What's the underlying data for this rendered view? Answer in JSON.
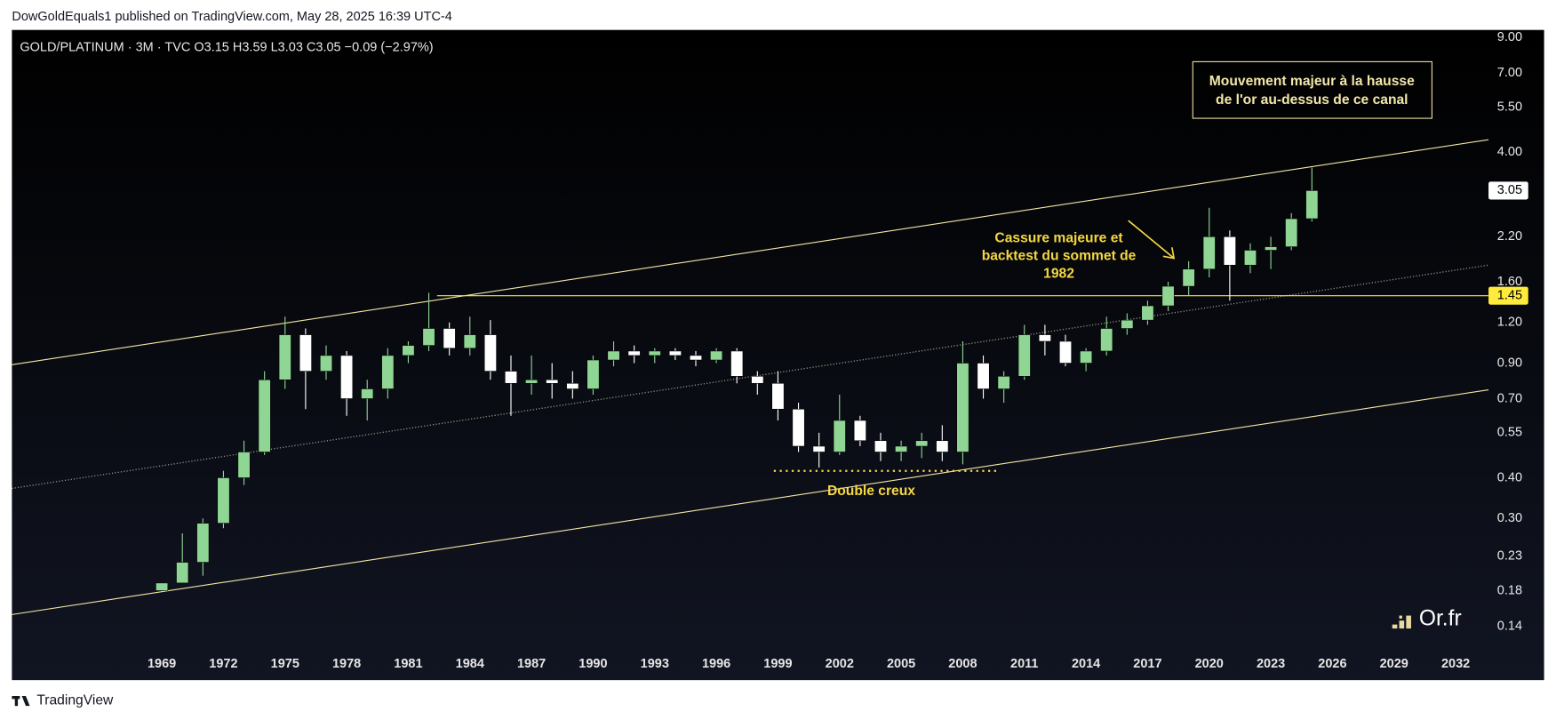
{
  "header": "DowGoldEquals1 published on TradingView.com, May 28, 2025 16:39 UTC-4",
  "footer": "TradingView",
  "logo": "Or.fr",
  "chart_data": {
    "type": "candlestick",
    "legend": "GOLD/PLATINUM · 3M · TVC  O3.15  H3.59  L3.03  C3.05  −0.09 (−2.97%)",
    "log_scale": true,
    "up_color": "#8fd694",
    "down_color": "#ffffff",
    "x": [
      1969,
      1970,
      1971,
      1972,
      1973,
      1974,
      1975,
      1976,
      1977,
      1978,
      1979,
      1980,
      1981,
      1982,
      1983,
      1984,
      1985,
      1986,
      1987,
      1988,
      1989,
      1990,
      1991,
      1992,
      1993,
      1994,
      1995,
      1996,
      1997,
      1998,
      1999,
      2000,
      2001,
      2002,
      2003,
      2004,
      2005,
      2006,
      2007,
      2008,
      2009,
      2010,
      2011,
      2012,
      2013,
      2014,
      2015,
      2016,
      2017,
      2018,
      2019,
      2020,
      2021,
      2022,
      2023,
      2024,
      2025
    ],
    "open": [
      0.18,
      0.19,
      0.22,
      0.29,
      0.4,
      0.48,
      0.8,
      1.1,
      0.85,
      0.95,
      0.7,
      0.75,
      0.95,
      1.02,
      1.15,
      1.0,
      1.1,
      0.85,
      0.78,
      0.8,
      0.78,
      0.75,
      0.92,
      0.98,
      0.95,
      0.98,
      0.95,
      0.92,
      0.98,
      0.82,
      0.78,
      0.65,
      0.5,
      0.48,
      0.6,
      0.52,
      0.48,
      0.5,
      0.52,
      0.48,
      0.9,
      0.75,
      0.82,
      1.1,
      1.05,
      0.9,
      0.98,
      1.15,
      1.22,
      1.35,
      1.55,
      1.75,
      2.2,
      1.8,
      2.0,
      2.05,
      2.5
    ],
    "high": [
      0.19,
      0.27,
      0.3,
      0.42,
      0.52,
      0.85,
      1.25,
      1.15,
      1.02,
      0.98,
      0.8,
      1.0,
      1.05,
      1.48,
      1.2,
      1.25,
      1.22,
      0.95,
      0.95,
      0.9,
      0.85,
      0.95,
      1.05,
      1.02,
      1.0,
      1.0,
      0.98,
      1.0,
      1.0,
      0.85,
      0.85,
      0.68,
      0.55,
      0.72,
      0.62,
      0.55,
      0.52,
      0.55,
      0.58,
      1.05,
      0.95,
      0.85,
      1.18,
      1.18,
      1.1,
      1.0,
      1.25,
      1.28,
      1.4,
      1.6,
      1.85,
      2.7,
      2.3,
      2.1,
      2.2,
      2.6,
      3.59
    ],
    "low": [
      0.18,
      0.2,
      0.2,
      0.28,
      0.38,
      0.47,
      0.75,
      0.65,
      0.8,
      0.62,
      0.6,
      0.7,
      0.9,
      0.98,
      0.95,
      0.95,
      0.8,
      0.62,
      0.72,
      0.7,
      0.7,
      0.72,
      0.88,
      0.9,
      0.9,
      0.92,
      0.88,
      0.9,
      0.78,
      0.72,
      0.6,
      0.48,
      0.43,
      0.47,
      0.5,
      0.45,
      0.45,
      0.46,
      0.45,
      0.44,
      0.7,
      0.68,
      0.8,
      0.95,
      0.88,
      0.85,
      0.95,
      1.1,
      1.18,
      1.3,
      1.45,
      1.65,
      1.4,
      1.7,
      1.75,
      2.0,
      2.45
    ],
    "close": [
      0.19,
      0.22,
      0.29,
      0.4,
      0.48,
      0.8,
      1.1,
      0.85,
      0.95,
      0.7,
      0.75,
      0.95,
      1.02,
      1.15,
      1.0,
      1.1,
      0.85,
      0.78,
      0.8,
      0.78,
      0.75,
      0.92,
      0.98,
      0.95,
      0.98,
      0.95,
      0.92,
      0.98,
      0.82,
      0.78,
      0.65,
      0.5,
      0.48,
      0.6,
      0.52,
      0.48,
      0.5,
      0.52,
      0.48,
      0.9,
      0.75,
      0.82,
      1.1,
      1.05,
      0.9,
      0.98,
      1.15,
      1.22,
      1.35,
      1.55,
      1.75,
      2.2,
      1.8,
      2.0,
      2.05,
      2.5,
      3.05
    ],
    "xlim": [
      1961.7,
      2033.6
    ],
    "xticks": [
      1969,
      1972,
      1975,
      1978,
      1981,
      1984,
      1987,
      1990,
      1993,
      1996,
      1999,
      2002,
      2005,
      2008,
      2011,
      2014,
      2017,
      2020,
      2023,
      2026,
      2029,
      2032
    ],
    "ylim": [
      0.118,
      9.5
    ],
    "yticks": [
      {
        "value": 9,
        "label": "9.00"
      },
      {
        "value": 7,
        "label": "7.00"
      },
      {
        "value": 5.5,
        "label": "5.50"
      },
      {
        "value": 4,
        "label": "4.00"
      },
      {
        "value": 2.2,
        "label": "2.20"
      },
      {
        "value": 1.6,
        "label": "1.60"
      },
      {
        "value": 1.2,
        "label": "1.20"
      },
      {
        "value": 0.9,
        "label": "0.90"
      },
      {
        "value": 0.7,
        "label": "0.70"
      },
      {
        "value": 0.55,
        "label": "0.55"
      },
      {
        "value": 0.4,
        "label": "0.40"
      },
      {
        "value": 0.3,
        "label": "0.30"
      },
      {
        "value": 0.23,
        "label": "0.23"
      },
      {
        "value": 0.18,
        "label": "0.18"
      },
      {
        "value": 0.14,
        "label": "0.14"
      }
    ],
    "price_labels": [
      {
        "value": 3.05,
        "color": "#ffffff"
      },
      {
        "value": 1.45,
        "color": "#ffeb3b"
      }
    ],
    "trendlines": [
      {
        "x": [
          1961.7,
          2033.6
        ],
        "y": [
          0.89,
          4.37
        ],
        "color": "#f3e7a8",
        "dash": false
      },
      {
        "x": [
          1961.7,
          2033.6
        ],
        "y": [
          0.152,
          0.745
        ],
        "color": "#f3e7a8",
        "dash": false
      },
      {
        "x": [
          1961.7,
          2033.6
        ],
        "y": [
          0.371,
          1.8
        ],
        "color": "#9a9a8a",
        "dash": true
      },
      {
        "x": [
          1982.4,
          2033.6
        ],
        "y": [
          1.45,
          1.45
        ],
        "color": "#ffeb3b",
        "dash": false
      },
      {
        "x": [
          1998.8,
          2009.8
        ],
        "y": [
          0.42,
          0.42
        ],
        "color": "#f5d742",
        "dash": true
      }
    ],
    "annotations": {
      "box": [
        "Mouvement majeur à la hausse",
        "de l'or au-dessus de ce canal"
      ],
      "breakout": [
        "Cassure majeure et",
        "backtest du sommet de",
        "1982"
      ],
      "double_bottom": "Double creux"
    }
  }
}
